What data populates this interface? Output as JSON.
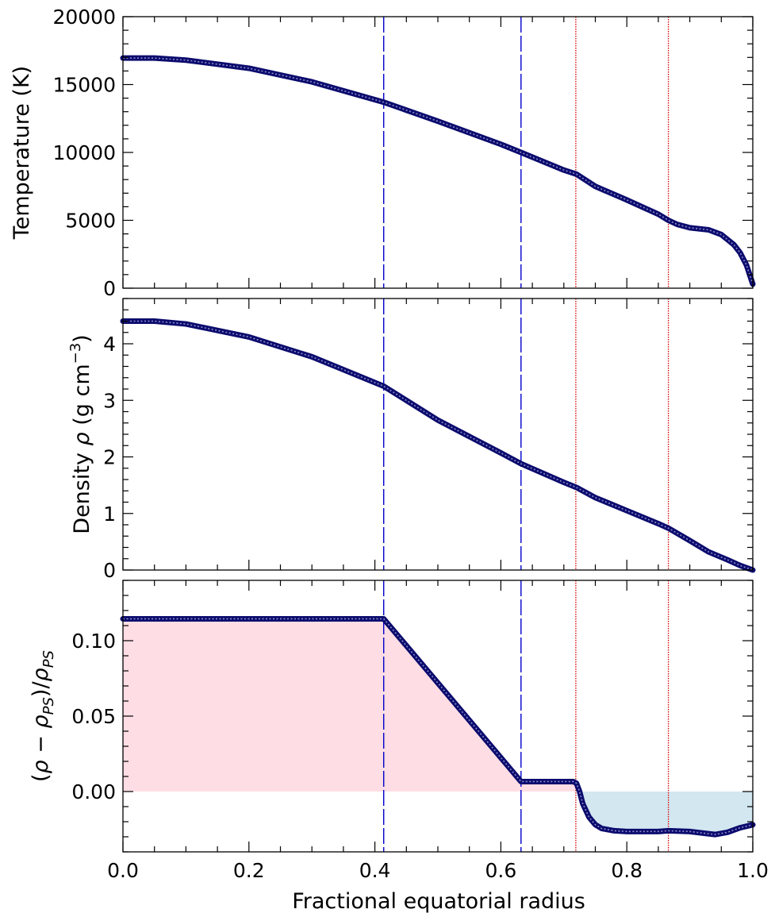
{
  "chart_data": [
    {
      "type": "line",
      "title": "",
      "xlabel": "",
      "ylabel": "Temperature (K)",
      "xlim": [
        0,
        1
      ],
      "ylim": [
        0,
        20000
      ],
      "xticks": [
        0,
        0.2,
        0.4,
        0.6,
        0.8,
        1.0
      ],
      "yticks": [
        0,
        5000,
        10000,
        15000,
        20000
      ],
      "ytick_labels": [
        "0",
        "5000",
        "10000",
        "15000",
        "20000"
      ],
      "grid": false,
      "series": [
        {
          "color": "#0b0b6e",
          "x": [
            0,
            0.05,
            0.1,
            0.2,
            0.3,
            0.414,
            0.5,
            0.6,
            0.632,
            0.7,
            0.72,
            0.75,
            0.8,
            0.85,
            0.866,
            0.88,
            0.9,
            0.93,
            0.95,
            0.97,
            0.98,
            0.99,
            1.0
          ],
          "y": [
            16950,
            16950,
            16800,
            16200,
            15200,
            13700,
            12300,
            10600,
            10000,
            8700,
            8400,
            7500,
            6500,
            5450,
            5000,
            4700,
            4450,
            4300,
            3950,
            3200,
            2600,
            1700,
            300
          ]
        }
      ],
      "vlines": [
        {
          "x": 0.414,
          "style": "dashed",
          "color": "#0000cc"
        },
        {
          "x": 0.632,
          "style": "dashed",
          "color": "#0000cc"
        },
        {
          "x": 0.719,
          "style": "dotted",
          "color": "#dd0000"
        },
        {
          "x": 0.866,
          "style": "dotted",
          "color": "#dd0000"
        }
      ]
    },
    {
      "type": "line",
      "title": "",
      "xlabel": "",
      "ylabel": "Density ρ (g cm⁻³)",
      "ylabel_parts": {
        "prefix": "Density ",
        "symbol": "ρ",
        "unit": " (g cm",
        "exponent": "−3",
        "close": ")"
      },
      "xlim": [
        0,
        1
      ],
      "ylim": [
        0,
        4.8
      ],
      "xticks": [
        0,
        0.2,
        0.4,
        0.6,
        0.8,
        1.0
      ],
      "yticks": [
        0,
        1,
        2,
        3,
        4
      ],
      "ytick_labels": [
        "0",
        "1",
        "2",
        "3",
        "4"
      ],
      "grid": false,
      "series": [
        {
          "color": "#0b0b6e",
          "x": [
            0,
            0.05,
            0.1,
            0.2,
            0.3,
            0.414,
            0.5,
            0.6,
            0.632,
            0.7,
            0.72,
            0.75,
            0.8,
            0.85,
            0.866,
            0.9,
            0.93,
            0.96,
            0.98,
            1.0
          ],
          "y": [
            4.4,
            4.4,
            4.35,
            4.12,
            3.77,
            3.25,
            2.65,
            2.07,
            1.88,
            1.55,
            1.46,
            1.28,
            1.05,
            0.82,
            0.74,
            0.52,
            0.32,
            0.18,
            0.08,
            0.0
          ]
        }
      ],
      "vlines": [
        {
          "x": 0.414,
          "style": "dashed",
          "color": "#0000cc"
        },
        {
          "x": 0.632,
          "style": "dashed",
          "color": "#0000cc"
        },
        {
          "x": 0.719,
          "style": "dotted",
          "color": "#dd0000"
        },
        {
          "x": 0.866,
          "style": "dotted",
          "color": "#dd0000"
        }
      ]
    },
    {
      "type": "area",
      "title": "",
      "xlabel": "Fractional equatorial radius",
      "ylabel": "(ρ − ρPS)/ρPS",
      "ylabel_parts": {
        "open": "(",
        "rho": "ρ",
        "minus": " − ",
        "sub": "PS",
        "close": ")/"
      },
      "xlim": [
        0,
        1
      ],
      "ylim": [
        -0.04,
        0.14
      ],
      "xticks": [
        0,
        0.2,
        0.4,
        0.6,
        0.8,
        1.0
      ],
      "xtick_labels": [
        "0.0",
        "0.2",
        "0.4",
        "0.6",
        "0.8",
        "1.0"
      ],
      "yticks": [
        0,
        0.05,
        0.1
      ],
      "ytick_labels": [
        "0.00",
        "0.05",
        "0.10"
      ],
      "grid": false,
      "positive_fill_color": "#ffdde4",
      "negative_fill_color": "#d2e7f0",
      "series": [
        {
          "color": "#0b0b6e",
          "x": [
            0,
            0.1,
            0.2,
            0.3,
            0.414,
            0.632,
            0.65,
            0.7,
            0.715,
            0.72,
            0.725,
            0.73,
            0.74,
            0.75,
            0.76,
            0.78,
            0.8,
            0.85,
            0.866,
            0.9,
            0.94,
            0.96,
            0.98,
            1.0
          ],
          "y": [
            0.1145,
            0.1145,
            0.1145,
            0.1145,
            0.1145,
            0.0066,
            0.0066,
            0.0066,
            0.0066,
            0.0055,
            0.0,
            -0.008,
            -0.017,
            -0.022,
            -0.0245,
            -0.026,
            -0.0265,
            -0.0265,
            -0.026,
            -0.0265,
            -0.0285,
            -0.027,
            -0.024,
            -0.022
          ]
        }
      ],
      "vlines": [
        {
          "x": 0.414,
          "style": "dashed",
          "color": "#0000cc"
        },
        {
          "x": 0.632,
          "style": "dashed",
          "color": "#0000cc"
        },
        {
          "x": 0.719,
          "style": "dotted",
          "color": "#dd0000"
        },
        {
          "x": 0.866,
          "style": "dotted",
          "color": "#dd0000"
        }
      ]
    }
  ]
}
